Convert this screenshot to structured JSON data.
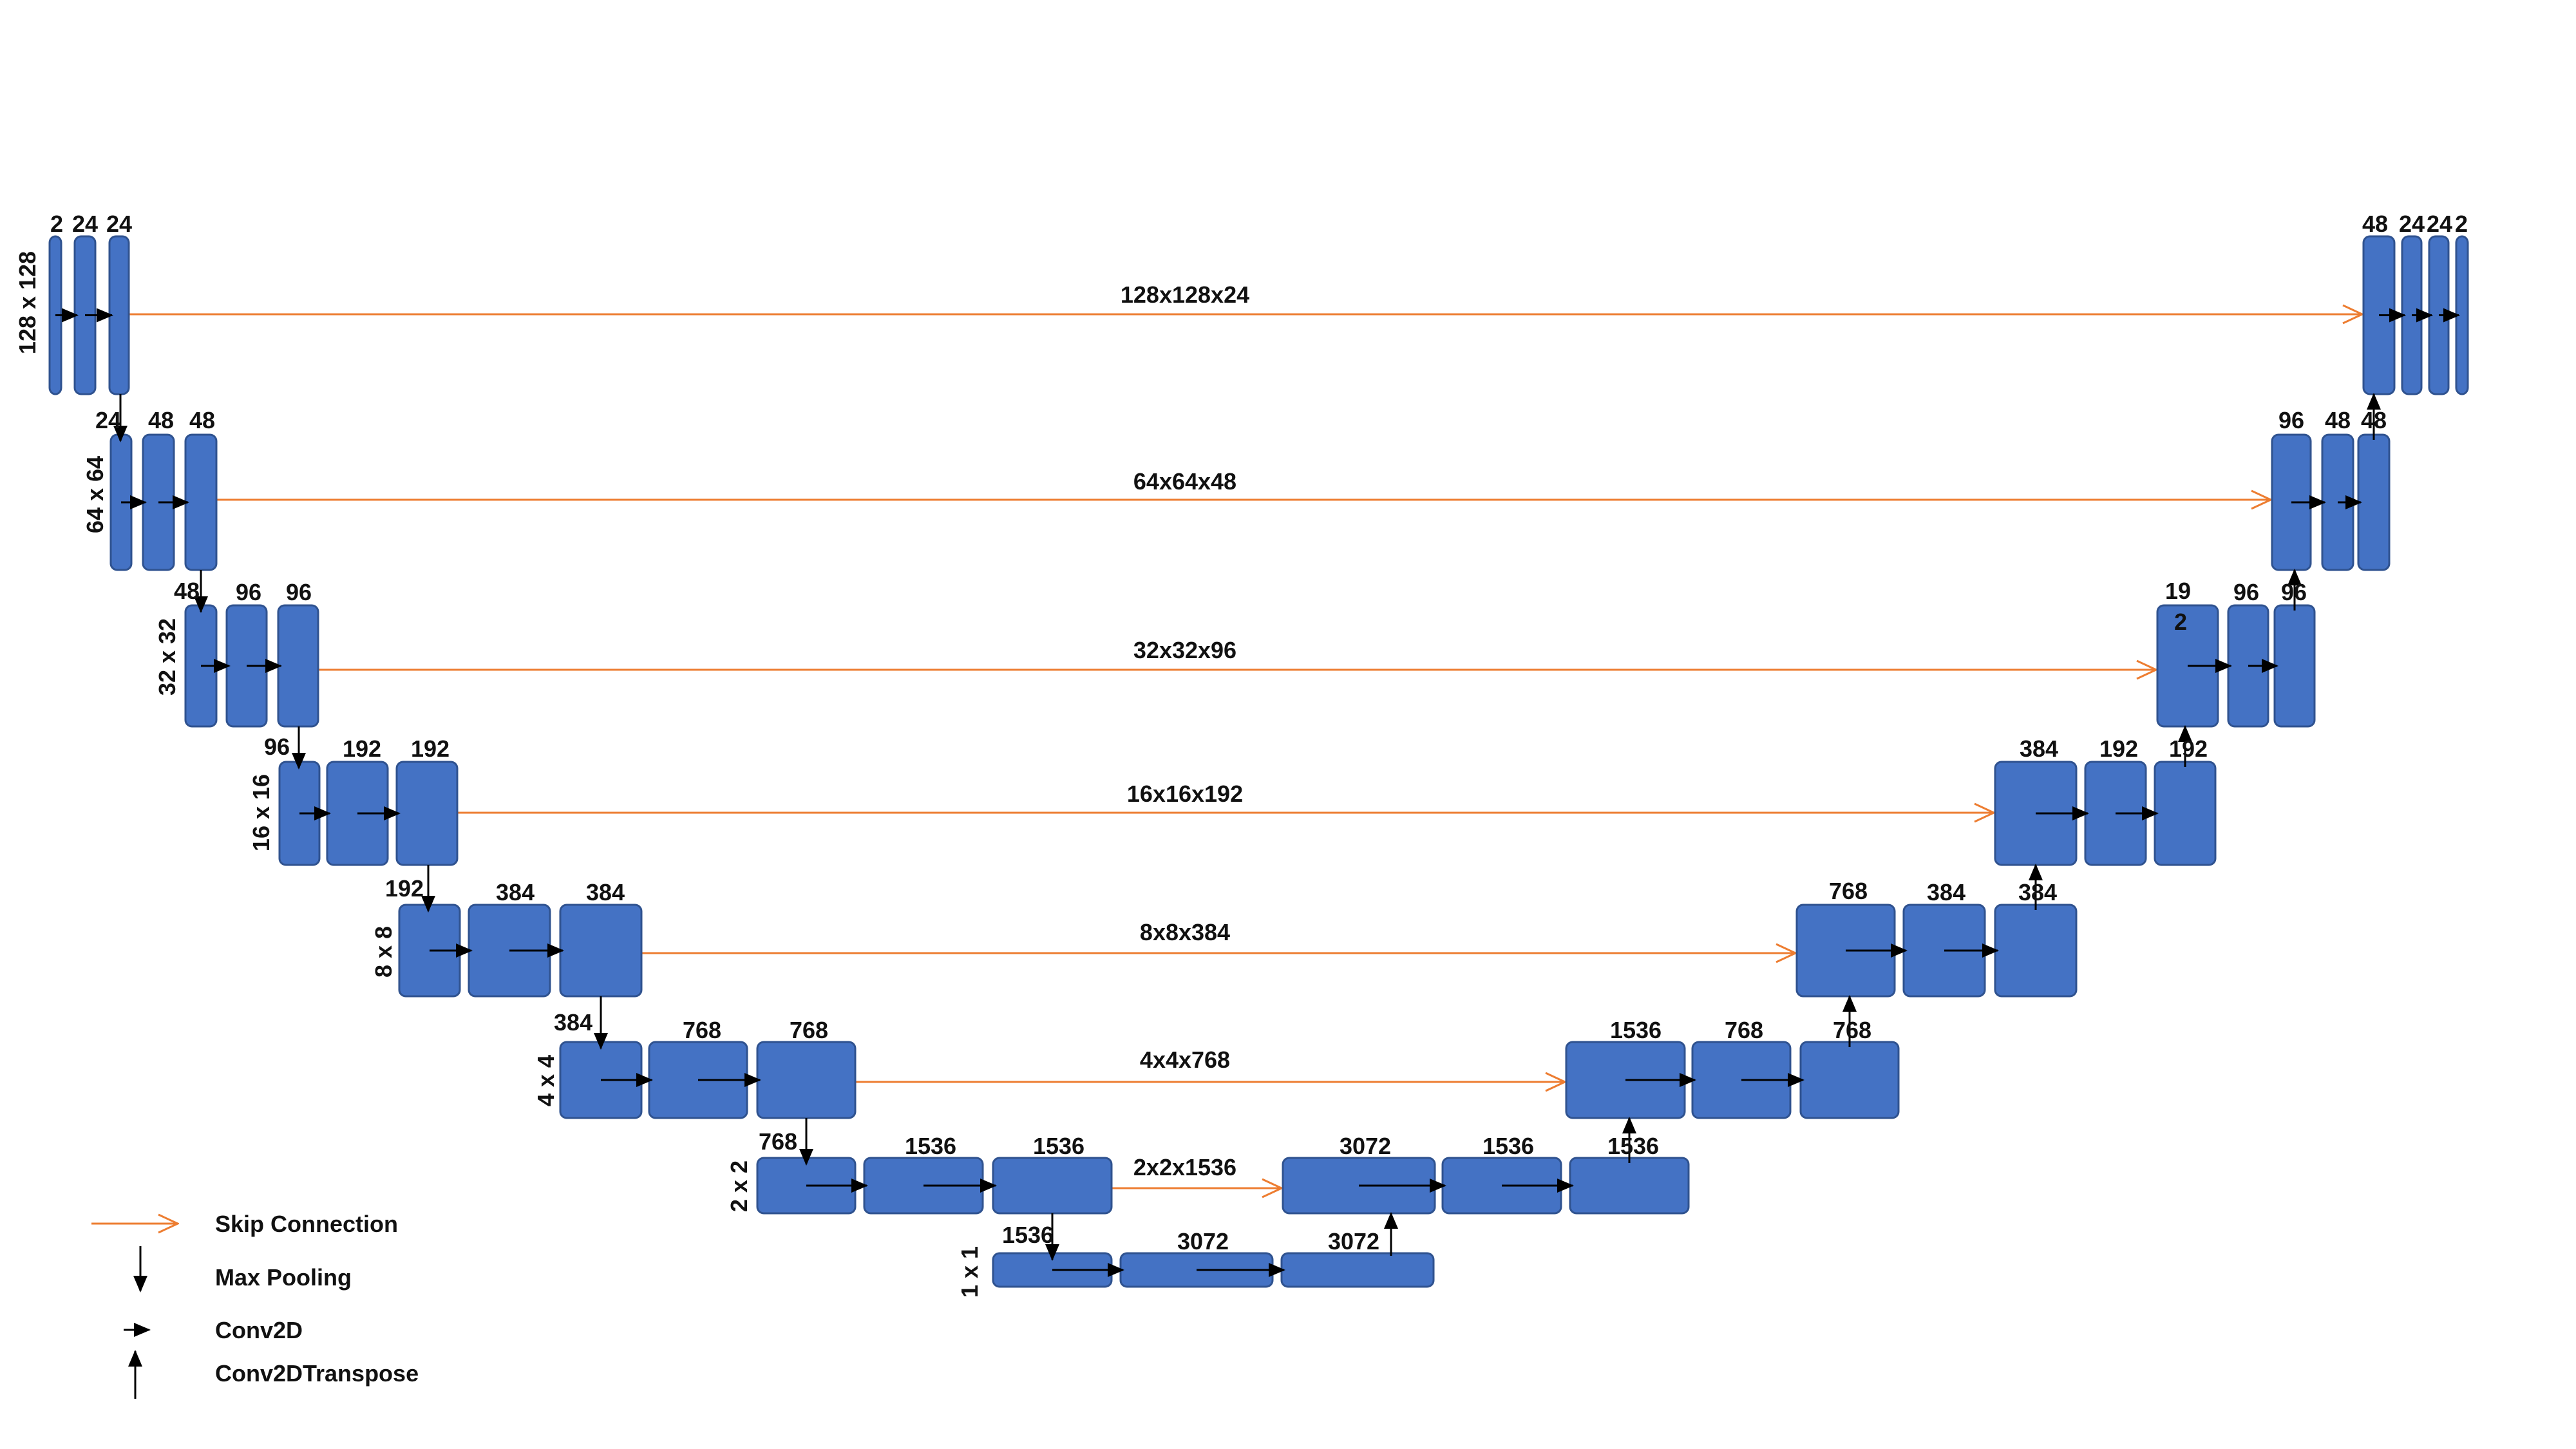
{
  "colors": {
    "block_fill": "#4472C4",
    "block_stroke": "#2F528F",
    "skip_line": "#ED7D31",
    "arrow": "#000000",
    "text": "#111111"
  },
  "levels": [
    {
      "res": "128 x 128",
      "enc": [
        {
          "ch": "2"
        },
        {
          "ch": "24"
        },
        {
          "ch": "24"
        }
      ],
      "dec": [
        {
          "ch": "48"
        },
        {
          "ch": "24"
        },
        {
          "ch": "24"
        },
        {
          "ch": "2"
        }
      ],
      "skip": "128x128x24"
    },
    {
      "res": "64 x 64",
      "enc": [
        {
          "ch": "24"
        },
        {
          "ch": "48"
        },
        {
          "ch": "48"
        }
      ],
      "dec": [
        {
          "ch": "96"
        },
        {
          "ch": "48"
        },
        {
          "ch": "48"
        }
      ],
      "skip": "64x64x48"
    },
    {
      "res": "32 x 32",
      "enc": [
        {
          "ch": "48"
        },
        {
          "ch": "96"
        },
        {
          "ch": "96"
        }
      ],
      "dec": [
        {
          "ch": "19",
          "ch2": "2"
        },
        {
          "ch": "96"
        },
        {
          "ch": "96"
        }
      ],
      "skip": "32x32x96"
    },
    {
      "res": "16 x 16",
      "enc": [
        {
          "ch": "96"
        },
        {
          "ch": "192"
        },
        {
          "ch": "192"
        }
      ],
      "dec": [
        {
          "ch": "384"
        },
        {
          "ch": "192"
        },
        {
          "ch": "192"
        }
      ],
      "skip": "16x16x192"
    },
    {
      "res": "8 x 8",
      "enc": [
        {
          "ch": "192"
        },
        {
          "ch": "384"
        },
        {
          "ch": "384"
        }
      ],
      "dec": [
        {
          "ch": "768"
        },
        {
          "ch": "384"
        },
        {
          "ch": "384"
        }
      ],
      "skip": "8x8x384"
    },
    {
      "res": "4 x 4",
      "enc": [
        {
          "ch": "384"
        },
        {
          "ch": "768"
        },
        {
          "ch": "768"
        }
      ],
      "dec": [
        {
          "ch": "1536"
        },
        {
          "ch": "768"
        },
        {
          "ch": "768"
        }
      ],
      "skip": "4x4x768"
    },
    {
      "res": "2 x 2",
      "enc": [
        {
          "ch": "768"
        },
        {
          "ch": "1536"
        },
        {
          "ch": "1536"
        }
      ],
      "dec": [
        {
          "ch": "3072"
        },
        {
          "ch": "1536"
        },
        {
          "ch": "1536"
        }
      ],
      "skip": "2x2x1536"
    },
    {
      "res": "1 x 1",
      "enc": [
        {
          "ch": "1536"
        },
        {
          "ch": "3072"
        },
        {
          "ch": "3072"
        }
      ],
      "dec": [],
      "skip": ""
    }
  ],
  "legend": [
    {
      "kind": "skip",
      "label": "Skip Connection",
      "icon": "orange-arrow-icon"
    },
    {
      "kind": "pool",
      "label": "Max Pooling",
      "icon": "down-arrow-icon"
    },
    {
      "kind": "conv",
      "label": "Conv2D",
      "icon": "right-arrowhead-icon"
    },
    {
      "kind": "up",
      "label": "Conv2DTranspose",
      "icon": "up-arrow-icon"
    }
  ]
}
